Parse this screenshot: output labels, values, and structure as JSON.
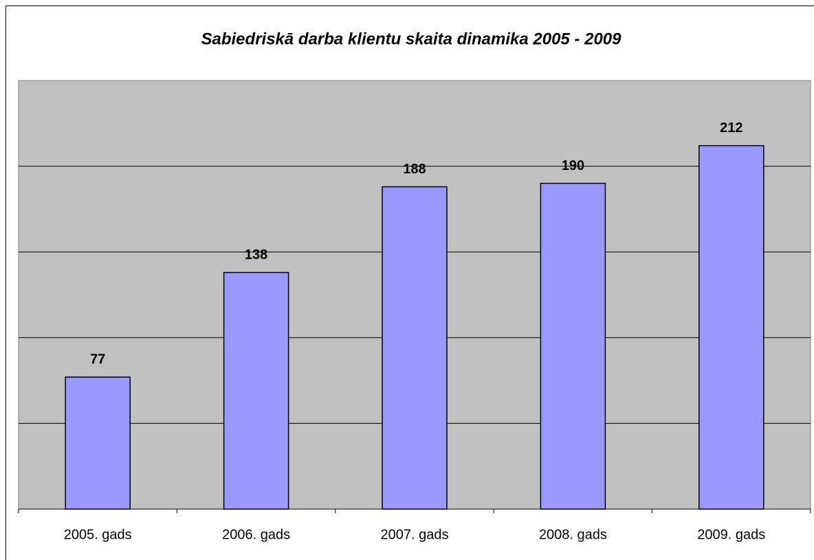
{
  "chart_data": {
    "type": "bar",
    "title": "Sabiedriskā darba klientu skaita dinamika 2005 - 2009",
    "categories": [
      "2005. gads",
      "2006. gads",
      "2007. gads",
      "2008. gads",
      "2009. gads"
    ],
    "values": [
      77,
      138,
      188,
      190,
      212
    ],
    "color": "#9999ff",
    "ylim": [
      0,
      250
    ],
    "yticks": [
      0,
      50,
      100,
      150,
      200,
      250
    ],
    "grid": true
  }
}
